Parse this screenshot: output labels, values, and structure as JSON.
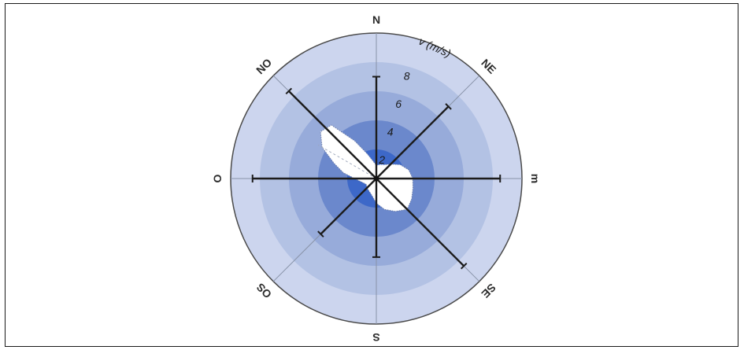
{
  "chart_data": {
    "type": "wind-rose",
    "title": "",
    "unit_label": "v (m/s)",
    "radial_range": [
      0,
      10
    ],
    "ring_values": [
      2,
      4,
      6,
      8,
      10
    ],
    "ring_labels": [
      "2",
      "4",
      "6",
      "8"
    ],
    "ring_colors": [
      "#3d68c8",
      "#6b88cc",
      "#97abda",
      "#b3c2e4",
      "#ccd5ee"
    ],
    "directions": [
      {
        "label": "N",
        "angle": 0
      },
      {
        "label": "NE",
        "angle": 45
      },
      {
        "label": "m",
        "angle": 90
      },
      {
        "label": "SE",
        "angle": 135
      },
      {
        "label": "S",
        "angle": 180
      },
      {
        "label": "OS",
        "angle": 225
      },
      {
        "label": "O",
        "angle": 270
      },
      {
        "label": "NO",
        "angle": 315
      }
    ],
    "axes": [
      {
        "angle": 0,
        "bold_extent": 7
      },
      {
        "angle": 45,
        "bold_extent": 7
      },
      {
        "angle": 90,
        "bold_extent": 8.5
      },
      {
        "angle": 135,
        "bold_extent": 8.5
      },
      {
        "angle": 180,
        "bold_extent": 5.4
      },
      {
        "angle": 225,
        "bold_extent": 5.4
      },
      {
        "angle": 270,
        "bold_extent": 8.5
      },
      {
        "angle": 315,
        "bold_extent": 8.5
      }
    ],
    "wind_profile": {
      "angles": [
        0,
        15,
        30,
        45,
        60,
        75,
        90,
        105,
        120,
        135,
        150,
        165,
        180,
        195,
        210,
        225,
        240,
        255,
        270,
        280,
        290,
        300,
        310,
        320,
        330,
        340,
        350
      ],
      "speeds": [
        0.9,
        1.0,
        1.1,
        1.4,
        1.9,
        2.3,
        2.5,
        2.6,
        2.8,
        3.0,
        2.6,
        2.2,
        1.7,
        1.2,
        1.0,
        0.9,
        0.8,
        1.0,
        1.5,
        2.3,
        3.1,
        4.3,
        5.0,
        4.8,
        3.0,
        1.8,
        1.2
      ]
    },
    "dominant_direction": 300,
    "grid": true,
    "legend": "none"
  }
}
